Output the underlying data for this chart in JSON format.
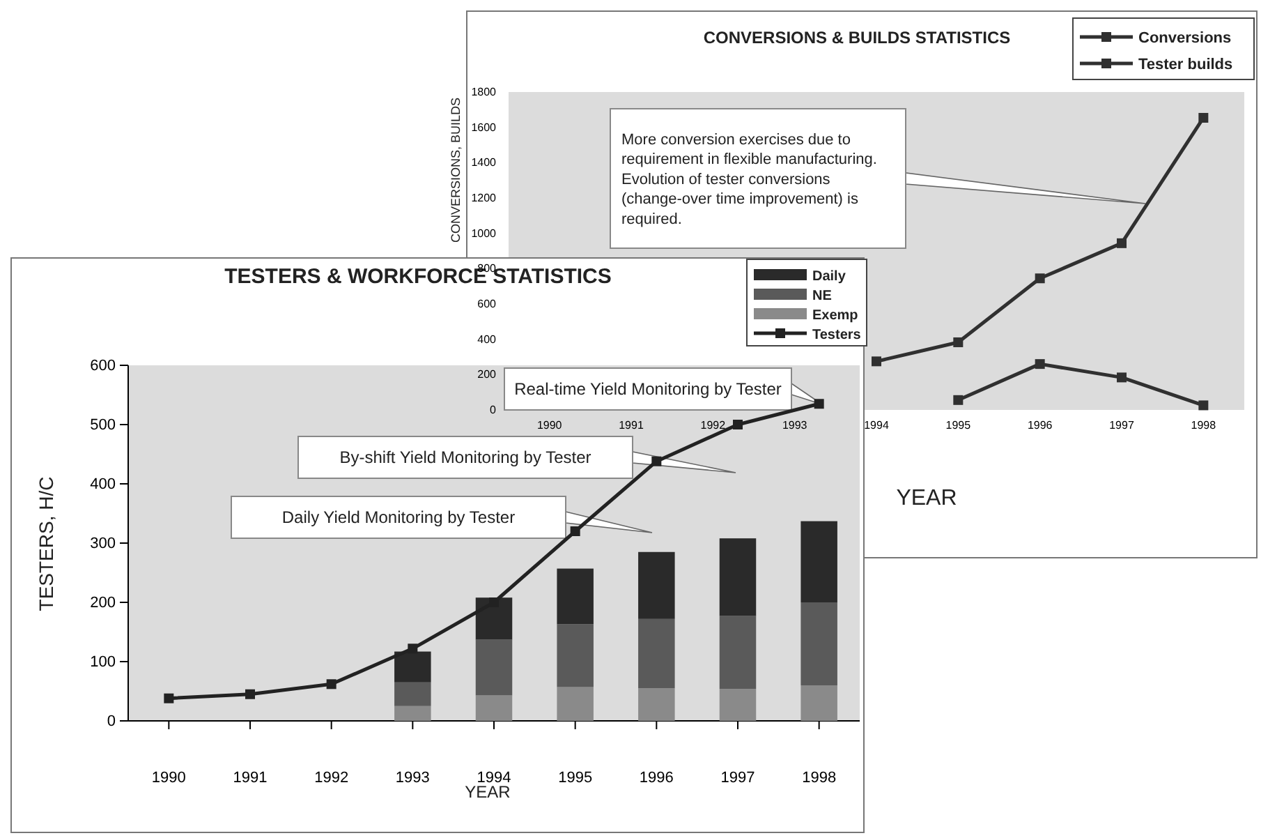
{
  "chart_data": [
    {
      "type": "line",
      "title": "CONVERSIONS & BUILDS STATISTICS",
      "xlabel": "YEAR",
      "ylabel": "CONVERSIONS, BUILDS",
      "categories": [
        "1990",
        "1991",
        "1992",
        "1993",
        "1994",
        "1995",
        "1996",
        "1997",
        "1998"
      ],
      "ylim": [
        0,
        1800
      ],
      "yticks": [
        0,
        200,
        400,
        600,
        800,
        1000,
        1200,
        1400,
        1600,
        1800
      ],
      "marker": "square",
      "line_style": "solid",
      "legend": "top right",
      "grid": false,
      "series": [
        {
          "name": "Conversions",
          "color": "#303030",
          "values": [
            null,
            null,
            null,
            null,
            275,
            383,
            745,
            944,
            1654
          ]
        },
        {
          "name": "Tester builds",
          "color": "#303030",
          "values": [
            null,
            null,
            null,
            null,
            null,
            56,
            260,
            184,
            26
          ]
        }
      ],
      "annotations": [
        "More conversion exercises due to requirement in flexible manufacturing.  Evolution of tester conversions (change-over time improvement) is required."
      ]
    },
    {
      "type": "bar",
      "stacked": true,
      "title": "TESTERS & WORKFORCE STATISTICS",
      "xlabel": "YEAR",
      "ylabel": "TESTERS, H/C",
      "categories": [
        "1990",
        "1991",
        "1992",
        "1993",
        "1994",
        "1995",
        "1996",
        "1997",
        "1998"
      ],
      "ylim": [
        0,
        600
      ],
      "yticks": [
        0,
        100,
        200,
        300,
        400,
        500,
        600
      ],
      "marker": "square",
      "line_style": "solid",
      "legend": "top right",
      "grid": false,
      "series": [
        {
          "name": "Exemp",
          "color": "#8a8a8a",
          "values": [
            null,
            null,
            null,
            25,
            43,
            57,
            55,
            54,
            60
          ]
        },
        {
          "name": "NE",
          "color": "#5a5a5a",
          "values": [
            null,
            null,
            null,
            40,
            94,
            106,
            117,
            123,
            140
          ]
        },
        {
          "name": "Daily",
          "color": "#2a2a2a",
          "values": [
            null,
            null,
            null,
            52,
            71,
            94,
            113,
            131,
            137
          ]
        },
        {
          "name": "Testers",
          "type": "line",
          "color": "#222222",
          "values": [
            38,
            45,
            62,
            122,
            200,
            320,
            438,
            500,
            535
          ]
        }
      ],
      "annotations": [
        "Real-time Yield Monitoring by Tester",
        "By-shift Yield Monitoring by Tester",
        "Daily Yield Monitoring by Tester"
      ]
    }
  ]
}
